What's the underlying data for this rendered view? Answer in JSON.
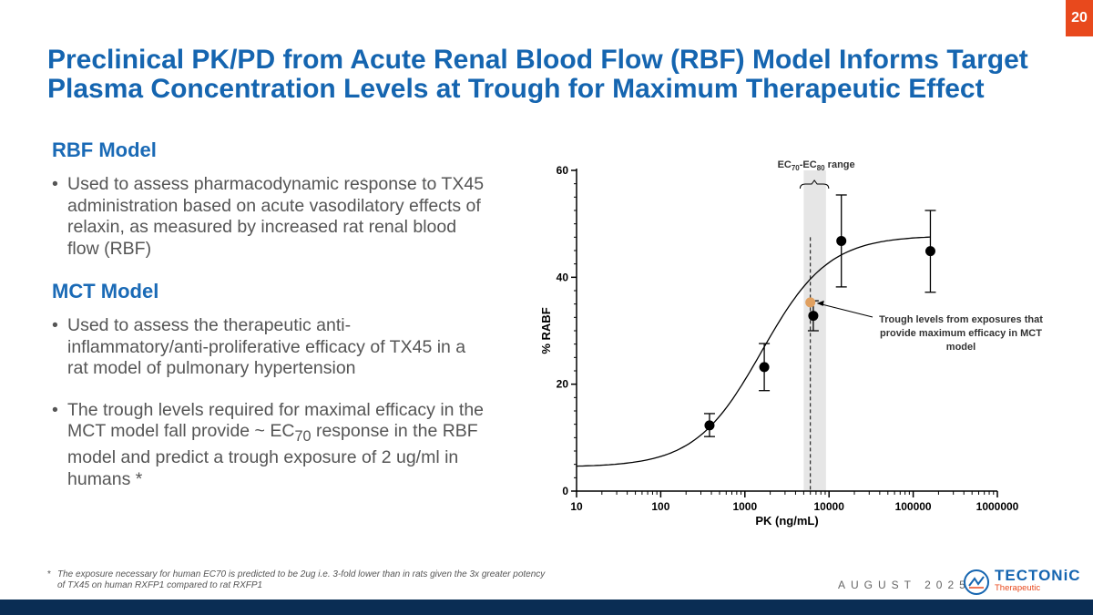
{
  "page_number": "20",
  "title_line1": "Preclinical PK/PD from Acute Renal Blood Flow (RBF) Model Informs Target",
  "title_line2": "Plasma Concentration Levels at Trough for Maximum Therapeutic Effect",
  "sections": {
    "rbf_heading": "RBF Model",
    "rbf_bullet": "Used to assess pharmacodynamic response to TX45 administration based on acute vasodilatory effects of relaxin, as measured by increased rat renal blood flow (RBF)",
    "mct_heading": "MCT Model",
    "mct_bullet1": "Used to assess the therapeutic anti-inflammatory/anti-proliferative efficacy of TX45 in a rat model of pulmonary hypertension",
    "mct_bullet2_part1": "The trough levels required for maximal efficacy in the MCT model fall provide ~ EC",
    "mct_bullet2_sub": "70",
    "mct_bullet2_part2": " response in the RBF model and predict a trough exposure of 2 ug/ml in humans *"
  },
  "footnote": {
    "mark": "*",
    "text": "The exposure necessary for human EC70 is predicted to be 2ug i.e. 3-fold lower than in rats given the 3x greater potency of TX45 on human RXFP1 compared to rat RXFP1"
  },
  "date": "AUGUST 2025",
  "logo": {
    "name": "TECTONiC",
    "sub": "Therapeutic"
  },
  "colors": {
    "accent": "#e8491d",
    "brand_blue": "#1565b0",
    "navy": "#0a2d54",
    "trough_point": "#e0a060"
  },
  "chart_data": {
    "type": "scatter",
    "x_scale": "log",
    "xlabel": "PK (ng/mL)",
    "ylabel": "% RABF",
    "xlim": [
      10,
      1000000
    ],
    "ylim": [
      0,
      60
    ],
    "x_ticks": [
      10,
      100,
      1000,
      10000,
      100000,
      1000000
    ],
    "x_tick_labels": [
      "10",
      "100",
      "1000",
      "10000",
      "100000",
      "1000000"
    ],
    "y_ticks": [
      0,
      20,
      40,
      60
    ],
    "y_tick_labels": [
      "0",
      "20",
      "40",
      "60"
    ],
    "points": [
      {
        "x": 380,
        "y": 12.3,
        "err_low": 10.2,
        "err_high": 14.5
      },
      {
        "x": 1700,
        "y": 23.2,
        "err_low": 18.8,
        "err_high": 27.6
      },
      {
        "x": 6500,
        "y": 32.8,
        "err_low": 30.0,
        "err_high": 35.6
      },
      {
        "x": 14000,
        "y": 46.8,
        "err_low": 38.2,
        "err_high": 55.4
      },
      {
        "x": 160000,
        "y": 44.9,
        "err_low": 37.2,
        "err_high": 52.5
      }
    ],
    "fit_curve": {
      "model": "4PL",
      "bottom": 4.5,
      "top": 47.8,
      "log_ec50": 3.2,
      "hill": 1.1,
      "x_start": 10,
      "x_end": 160000
    },
    "ec_range": {
      "x_low": 5000,
      "x_high": 9200,
      "label_main": "EC",
      "label_sub1": "70",
      "label_sep": "-EC",
      "label_sub2": "80",
      "label_tail": " range"
    },
    "trough_marker": {
      "x": 6000,
      "y": 35.3
    },
    "annotation": {
      "lines": [
        "Trough levels from exposures that",
        "provide maximum efficacy in MCT",
        "model"
      ]
    }
  }
}
